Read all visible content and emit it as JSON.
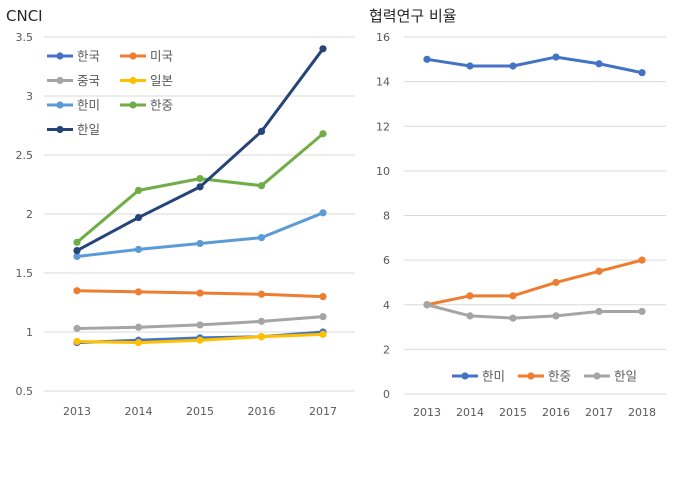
{
  "chart_data": [
    {
      "type": "line",
      "title": "CNCI",
      "x": [
        "2013",
        "2014",
        "2015",
        "2016",
        "2017"
      ],
      "ylim": [
        0.5,
        3.5
      ],
      "yticks": [
        "0.5",
        "1",
        "1.5",
        "2",
        "2.5",
        "3",
        "3.5"
      ],
      "grid": true,
      "legend_position": "top-left",
      "series": [
        {
          "name": "한국",
          "color": "#4472C4",
          "values": [
            0.91,
            0.93,
            0.95,
            0.96,
            1.0
          ]
        },
        {
          "name": "미국",
          "color": "#ED7D31",
          "values": [
            1.35,
            1.34,
            1.33,
            1.32,
            1.3
          ]
        },
        {
          "name": "중국",
          "color": "#A5A5A5",
          "values": [
            1.03,
            1.04,
            1.06,
            1.09,
            1.13
          ]
        },
        {
          "name": "일본",
          "color": "#FFC000",
          "values": [
            0.92,
            0.91,
            0.93,
            0.96,
            0.98
          ]
        },
        {
          "name": "한미",
          "color": "#5B9BD5",
          "values": [
            1.64,
            1.7,
            1.75,
            1.8,
            2.01
          ]
        },
        {
          "name": "한중",
          "color": "#70AD47",
          "values": [
            1.76,
            2.2,
            2.3,
            2.24,
            2.68
          ]
        },
        {
          "name": "한일",
          "color": "#264478",
          "values": [
            1.69,
            1.97,
            2.23,
            2.7,
            3.4
          ]
        }
      ]
    },
    {
      "type": "line",
      "title": "협력연구 비율",
      "x": [
        "2013",
        "2014",
        "2015",
        "2016",
        "2017",
        "2018"
      ],
      "ylim": [
        0,
        16
      ],
      "yticks": [
        "0",
        "2",
        "4",
        "6",
        "8",
        "10",
        "12",
        "14",
        "16"
      ],
      "grid": true,
      "legend_position": "bottom",
      "series": [
        {
          "name": "한미",
          "color": "#4472C4",
          "values": [
            15.0,
            14.7,
            14.7,
            15.1,
            14.8,
            14.4
          ]
        },
        {
          "name": "한중",
          "color": "#ED7D31",
          "values": [
            4.0,
            4.4,
            4.4,
            5.0,
            5.5,
            6.0
          ]
        },
        {
          "name": "한일",
          "color": "#A5A5A5",
          "values": [
            4.0,
            3.5,
            3.4,
            3.5,
            3.7,
            3.7
          ]
        }
      ]
    }
  ]
}
